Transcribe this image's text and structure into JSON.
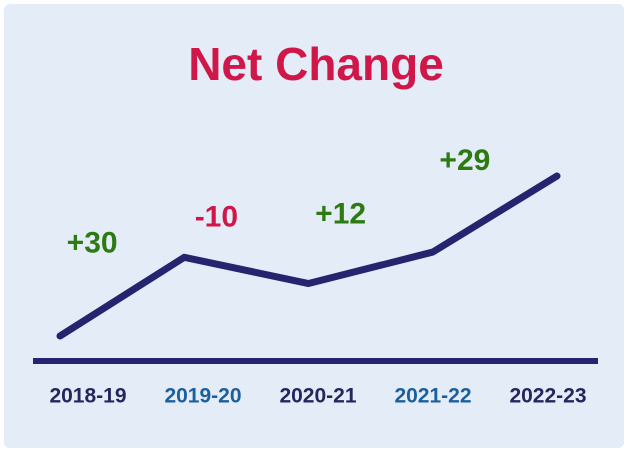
{
  "chart_data": {
    "type": "line",
    "title": "Net Change",
    "categories": [
      "2018-19",
      "2019-20",
      "2020-21",
      "2021-22",
      "2022-23"
    ],
    "category_colors": [
      "#26255e",
      "#1c5f9e",
      "#26255e",
      "#1c5f9e",
      "#26255e"
    ],
    "values": [
      0,
      30,
      20,
      32,
      61
    ],
    "color": "#25246e",
    "ylim": [
      0,
      61
    ],
    "annotations": [
      {
        "text": "+30",
        "color": "#2d7a12"
      },
      {
        "text": "-10",
        "color": "#d0174a"
      },
      {
        "text": "+12",
        "color": "#2d7a12"
      },
      {
        "text": "+29",
        "color": "#2d7a12"
      }
    ]
  }
}
